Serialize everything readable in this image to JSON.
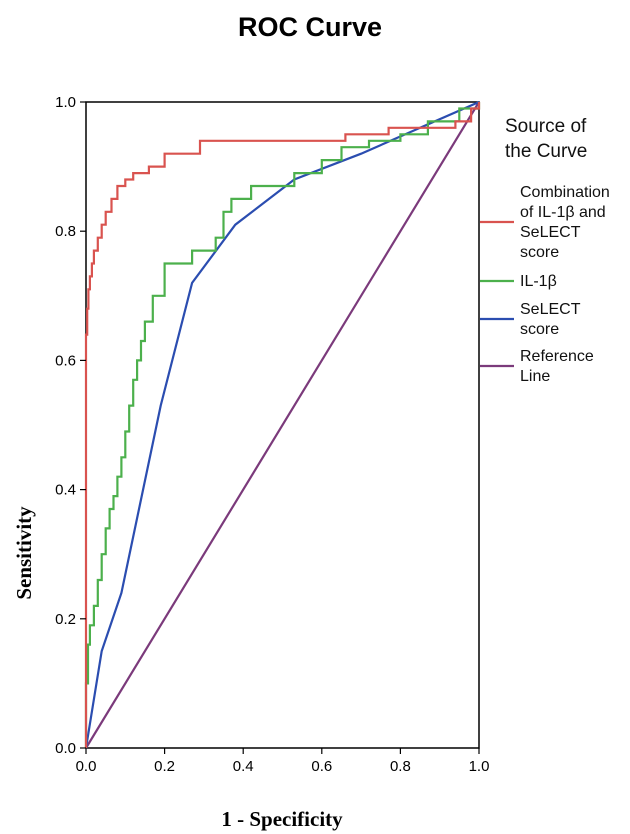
{
  "chart_data": {
    "type": "line",
    "title": "ROC Curve",
    "xlabel": "1 - Specificity",
    "ylabel": "Sensitivity",
    "xlim": [
      0.0,
      1.0
    ],
    "ylim": [
      0.0,
      1.0
    ],
    "x_ticks": [
      "0.0",
      "0.2",
      "0.4",
      "0.6",
      "0.8",
      "1.0"
    ],
    "y_ticks": [
      "0.0",
      "0.2",
      "0.4",
      "0.6",
      "0.8",
      "1.0"
    ],
    "grid": false,
    "legend_title": "Source of the Curve",
    "legend_position": "right",
    "series": [
      {
        "name": "Combination of IL-1β and SeLECT score",
        "color": "#d9534f",
        "step": true,
        "points": [
          [
            0,
            0
          ],
          [
            0,
            0.64
          ],
          [
            0.003,
            0.68
          ],
          [
            0.006,
            0.71
          ],
          [
            0.01,
            0.73
          ],
          [
            0.015,
            0.75
          ],
          [
            0.02,
            0.77
          ],
          [
            0.03,
            0.79
          ],
          [
            0.04,
            0.81
          ],
          [
            0.05,
            0.83
          ],
          [
            0.065,
            0.85
          ],
          [
            0.08,
            0.87
          ],
          [
            0.1,
            0.88
          ],
          [
            0.12,
            0.89
          ],
          [
            0.16,
            0.9
          ],
          [
            0.2,
            0.92
          ],
          [
            0.29,
            0.94
          ],
          [
            0.66,
            0.95
          ],
          [
            0.77,
            0.96
          ],
          [
            0.94,
            0.97
          ],
          [
            0.98,
            0.99
          ],
          [
            1,
            1
          ]
        ]
      },
      {
        "name": "IL-1β",
        "color": "#4cb04c",
        "step": true,
        "points": [
          [
            0,
            0
          ],
          [
            0,
            0.1
          ],
          [
            0.005,
            0.16
          ],
          [
            0.01,
            0.19
          ],
          [
            0.02,
            0.22
          ],
          [
            0.03,
            0.26
          ],
          [
            0.04,
            0.3
          ],
          [
            0.05,
            0.34
          ],
          [
            0.06,
            0.37
          ],
          [
            0.07,
            0.39
          ],
          [
            0.08,
            0.42
          ],
          [
            0.09,
            0.45
          ],
          [
            0.1,
            0.49
          ],
          [
            0.11,
            0.53
          ],
          [
            0.12,
            0.57
          ],
          [
            0.13,
            0.6
          ],
          [
            0.14,
            0.63
          ],
          [
            0.15,
            0.66
          ],
          [
            0.17,
            0.7
          ],
          [
            0.2,
            0.75
          ],
          [
            0.27,
            0.77
          ],
          [
            0.33,
            0.79
          ],
          [
            0.35,
            0.83
          ],
          [
            0.37,
            0.85
          ],
          [
            0.42,
            0.87
          ],
          [
            0.53,
            0.89
          ],
          [
            0.6,
            0.91
          ],
          [
            0.65,
            0.93
          ],
          [
            0.72,
            0.94
          ],
          [
            0.8,
            0.95
          ],
          [
            0.87,
            0.97
          ],
          [
            0.95,
            0.99
          ],
          [
            1,
            1
          ]
        ]
      },
      {
        "name": "SeLECT score",
        "color": "#2b4db0",
        "step": false,
        "points": [
          [
            0,
            0
          ],
          [
            0.04,
            0.15
          ],
          [
            0.09,
            0.24
          ],
          [
            0.19,
            0.53
          ],
          [
            0.27,
            0.72
          ],
          [
            0.38,
            0.81
          ],
          [
            0.53,
            0.88
          ],
          [
            0.7,
            0.92
          ],
          [
            0.85,
            0.96
          ],
          [
            1,
            1
          ]
        ]
      },
      {
        "name": "Reference Line",
        "color": "#7b3a7b",
        "step": false,
        "points": [
          [
            0,
            0
          ],
          [
            1,
            1
          ]
        ]
      }
    ]
  }
}
